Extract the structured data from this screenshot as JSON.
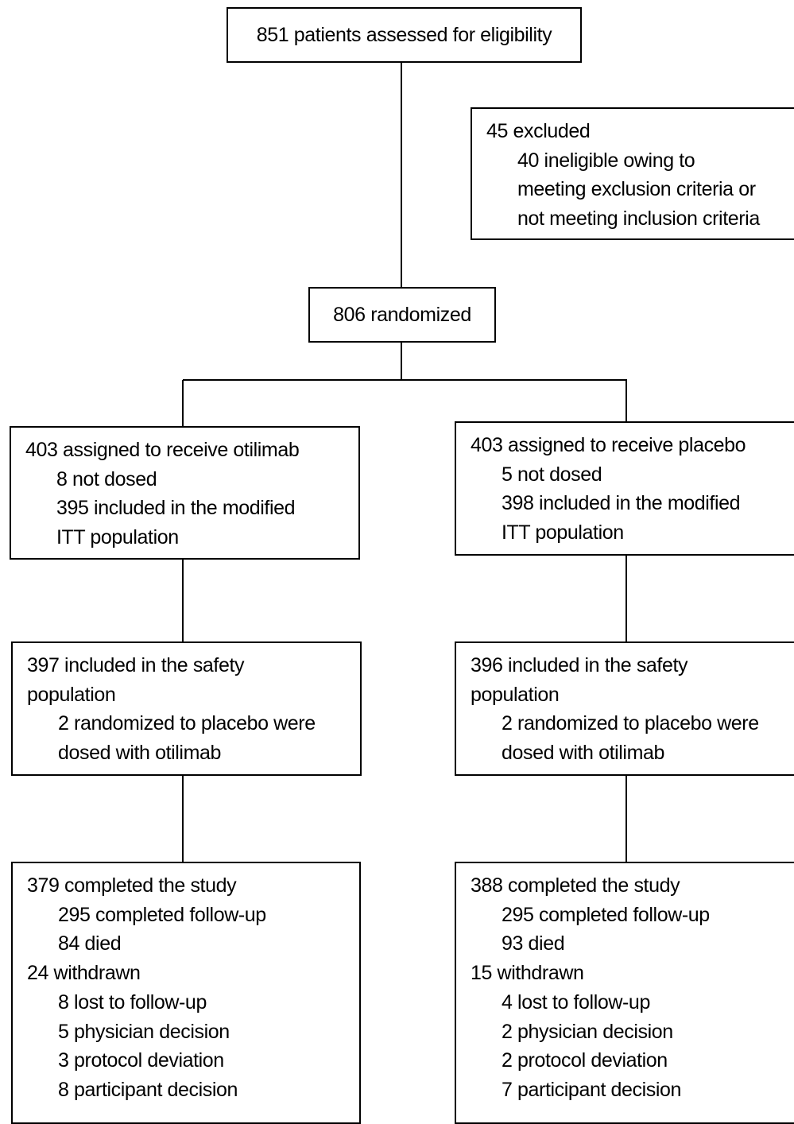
{
  "nodes": [
    {
      "lines": [
        "851 patients assessed for eligibility"
      ]
    },
    {
      "lines": [
        "45 excluded",
        "40 ineligible owing to",
        "meeting exclusion criteria or",
        "not meeting inclusion criteria"
      ]
    },
    {
      "lines": [
        "806 randomized"
      ]
    },
    {
      "lines": [
        "403 assigned to receive otilimab",
        "8 not dosed",
        "395 included in the modified",
        "ITT population"
      ]
    },
    {
      "lines": [
        "403 assigned to receive placebo",
        "5 not dosed",
        "398 included in the modified",
        "ITT population"
      ]
    },
    {
      "lines": [
        "397 included in the safety",
        "population",
        "2 randomized to placebo were",
        "dosed with otilimab"
      ]
    },
    {
      "lines": [
        "396 included in the safety",
        "population",
        "2 randomized to placebo were",
        "dosed with otilimab"
      ]
    },
    {
      "lines": [
        "379 completed the study",
        "295 completed follow-up",
        "84 died",
        "24 withdrawn",
        "8 lost to follow-up",
        "5 physician decision",
        "3 protocol deviation",
        "8 participant decision"
      ]
    },
    {
      "lines": [
        "388 completed the study",
        "295 completed follow-up",
        "93 died",
        "15 withdrawn",
        "4 lost to follow-up",
        "2 physician decision",
        "2 protocol deviation",
        "7 participant decision"
      ]
    }
  ]
}
